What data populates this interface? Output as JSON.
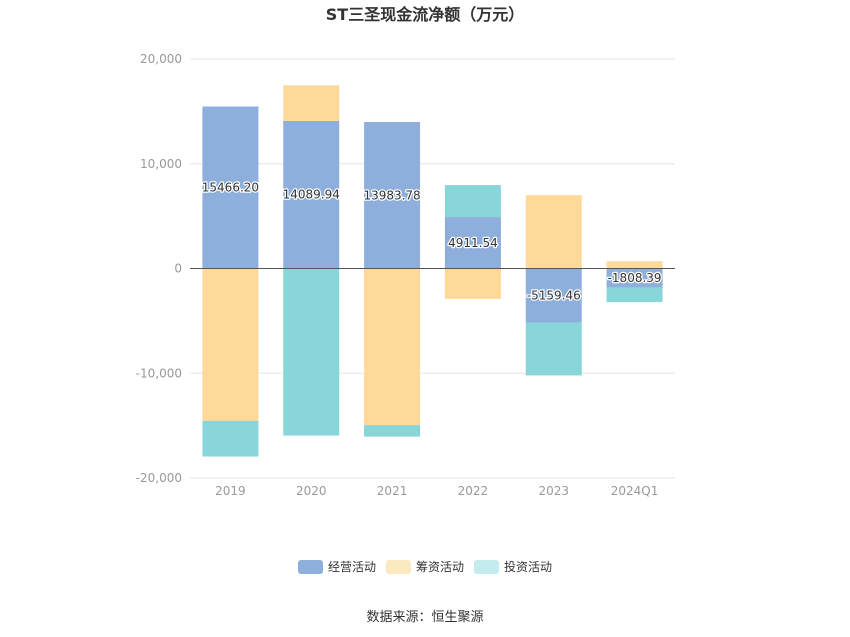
{
  "chart_data": {
    "type": "bar",
    "stacked": true,
    "title": "ST三圣现金流净额（万元）",
    "categories": [
      "2019",
      "2020",
      "2021",
      "2022",
      "2023",
      "2024Q1"
    ],
    "ylim": [
      -20000,
      20000
    ],
    "yticks": [
      20000,
      10000,
      0,
      -10000,
      -20000
    ],
    "ytick_labels": [
      "20,000",
      "10,000",
      "0",
      "-10,000",
      "-20,000"
    ],
    "grid": true,
    "legend_position": "bottom",
    "series": [
      {
        "name": "经营活动",
        "color": "#8eaedb",
        "values": [
          15466.2,
          14089.94,
          13983.78,
          4911.54,
          -5159.46,
          -1808.39
        ],
        "labels": [
          "15466.20",
          "14089.94",
          "13983.78",
          "4911.54",
          "-5159.46",
          "-1808.39"
        ]
      },
      {
        "name": "筹资活动",
        "color": "#ffd999",
        "values": [
          -14550,
          3400,
          -14950,
          -2900,
          7000,
          700
        ]
      },
      {
        "name": "投资活动",
        "color": "#88d6d9",
        "values": [
          -3400,
          -15950,
          -1100,
          3050,
          -5050,
          -1400
        ]
      }
    ],
    "legend_colors": [
      "#8eaedb",
      "#fde9c0",
      "#c4ecee"
    ]
  },
  "source": "数据来源：恒生聚源"
}
